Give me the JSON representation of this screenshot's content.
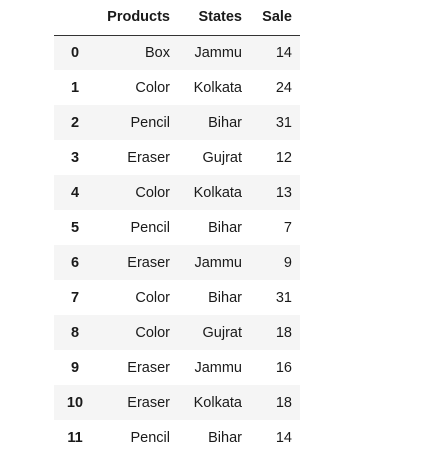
{
  "table": {
    "columns": [
      "",
      "Products",
      "States",
      "Sale"
    ],
    "rows": [
      {
        "index": "0",
        "Products": "Box",
        "States": "Jammu",
        "Sale": "14"
      },
      {
        "index": "1",
        "Products": "Color",
        "States": "Kolkata",
        "Sale": "24"
      },
      {
        "index": "2",
        "Products": "Pencil",
        "States": "Bihar",
        "Sale": "31"
      },
      {
        "index": "3",
        "Products": "Eraser",
        "States": "Gujrat",
        "Sale": "12"
      },
      {
        "index": "4",
        "Products": "Color",
        "States": "Kolkata",
        "Sale": "13"
      },
      {
        "index": "5",
        "Products": "Pencil",
        "States": "Bihar",
        "Sale": "7"
      },
      {
        "index": "6",
        "Products": "Eraser",
        "States": "Jammu",
        "Sale": "9"
      },
      {
        "index": "7",
        "Products": "Color",
        "States": "Bihar",
        "Sale": "31"
      },
      {
        "index": "8",
        "Products": "Color",
        "States": "Gujrat",
        "Sale": "18"
      },
      {
        "index": "9",
        "Products": "Eraser",
        "States": "Jammu",
        "Sale": "16"
      },
      {
        "index": "10",
        "Products": "Eraser",
        "States": "Kolkata",
        "Sale": "18"
      },
      {
        "index": "11",
        "Products": "Pencil",
        "States": "Bihar",
        "Sale": "14"
      }
    ]
  }
}
